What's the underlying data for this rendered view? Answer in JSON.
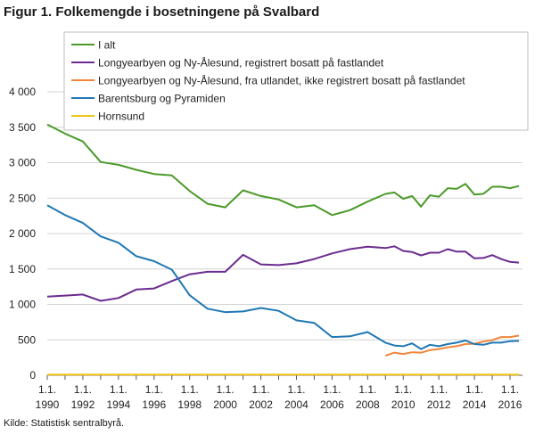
{
  "chart_data": {
    "type": "line",
    "title": "Figur 1. Folkemengde i bosetningene på Svalbard",
    "source": "Kilde: Statistisk sentralbyrå.",
    "xlabel": "",
    "ylabel": "",
    "x_tick_prefix": "1.1.",
    "x_ticks": [
      1990,
      1992,
      1994,
      1996,
      1998,
      2000,
      2002,
      2004,
      2006,
      2008,
      2010,
      2012,
      2014,
      2016
    ],
    "xlim": [
      1990,
      2016.7
    ],
    "y_ticks": [
      0,
      500,
      1000,
      1500,
      2000,
      2500,
      3000,
      3500,
      4000
    ],
    "y_tick_labels": [
      "0",
      "500",
      "1 000",
      "1 500",
      "2 000",
      "2 500",
      "3 000",
      "3 500",
      "4 000"
    ],
    "ylim": [
      0,
      4000
    ],
    "grid": "horizontal",
    "legend_placement": "top-right",
    "series": [
      {
        "name": "I alt",
        "color": "#4c9a2a",
        "points": [
          [
            1990,
            3540
          ],
          [
            1991,
            3410
          ],
          [
            1992,
            3300
          ],
          [
            1993,
            3010
          ],
          [
            1994,
            2970
          ],
          [
            1995,
            2900
          ],
          [
            1996,
            2840
          ],
          [
            1997,
            2820
          ],
          [
            1998,
            2600
          ],
          [
            1999,
            2420
          ],
          [
            2000,
            2370
          ],
          [
            2001,
            2610
          ],
          [
            2002,
            2530
          ],
          [
            2003,
            2480
          ],
          [
            2004,
            2370
          ],
          [
            2005,
            2400
          ],
          [
            2006,
            2260
          ],
          [
            2007,
            2330
          ],
          [
            2008,
            2450
          ],
          [
            2009,
            2560
          ],
          [
            2009.5,
            2580
          ],
          [
            2010,
            2490
          ],
          [
            2010.5,
            2530
          ],
          [
            2011,
            2380
          ],
          [
            2011.5,
            2540
          ],
          [
            2012,
            2520
          ],
          [
            2012.5,
            2640
          ],
          [
            2013,
            2630
          ],
          [
            2013.5,
            2700
          ],
          [
            2014,
            2550
          ],
          [
            2014.5,
            2560
          ],
          [
            2015,
            2660
          ],
          [
            2015.5,
            2660
          ],
          [
            2016,
            2640
          ],
          [
            2016.5,
            2670
          ]
        ]
      },
      {
        "name": "Longyearbyen og Ny-Ålesund, registrert bosatt på fastlandet",
        "color": "#6b2c8f",
        "points": [
          [
            1990,
            1110
          ],
          [
            1991,
            1125
          ],
          [
            1992,
            1140
          ],
          [
            1993,
            1050
          ],
          [
            1994,
            1090
          ],
          [
            1995,
            1210
          ],
          [
            1996,
            1225
          ],
          [
            1997,
            1330
          ],
          [
            1998,
            1425
          ],
          [
            1999,
            1460
          ],
          [
            2000,
            1460
          ],
          [
            2001,
            1700
          ],
          [
            2002,
            1565
          ],
          [
            2003,
            1555
          ],
          [
            2004,
            1580
          ],
          [
            2005,
            1640
          ],
          [
            2006,
            1720
          ],
          [
            2007,
            1780
          ],
          [
            2008,
            1815
          ],
          [
            2009,
            1795
          ],
          [
            2009.5,
            1820
          ],
          [
            2010,
            1755
          ],
          [
            2010.5,
            1740
          ],
          [
            2011,
            1690
          ],
          [
            2011.5,
            1730
          ],
          [
            2012,
            1730
          ],
          [
            2012.5,
            1780
          ],
          [
            2013,
            1745
          ],
          [
            2013.5,
            1745
          ],
          [
            2014,
            1650
          ],
          [
            2014.5,
            1655
          ],
          [
            2015,
            1695
          ],
          [
            2015.5,
            1640
          ],
          [
            2016,
            1600
          ],
          [
            2016.5,
            1590
          ]
        ]
      },
      {
        "name": "Longyearbyen og Ny-Ålesund, fra utlandet, ikke registrert bosatt på fastlandet",
        "color": "#f0863c",
        "points": [
          [
            2009,
            275
          ],
          [
            2009.5,
            320
          ],
          [
            2010,
            300
          ],
          [
            2010.5,
            325
          ],
          [
            2011,
            320
          ],
          [
            2011.5,
            355
          ],
          [
            2012,
            370
          ],
          [
            2012.5,
            395
          ],
          [
            2013,
            410
          ],
          [
            2013.5,
            440
          ],
          [
            2014,
            445
          ],
          [
            2014.5,
            475
          ],
          [
            2015,
            495
          ],
          [
            2015.5,
            540
          ],
          [
            2016,
            540
          ],
          [
            2016.5,
            560
          ]
        ]
      },
      {
        "name": "Barentsburg og Pyramiden",
        "color": "#1f78b4",
        "points": [
          [
            1990,
            2400
          ],
          [
            1991,
            2260
          ],
          [
            1992,
            2150
          ],
          [
            1993,
            1960
          ],
          [
            1994,
            1870
          ],
          [
            1995,
            1680
          ],
          [
            1996,
            1610
          ],
          [
            1997,
            1490
          ],
          [
            1998,
            1130
          ],
          [
            1999,
            940
          ],
          [
            2000,
            890
          ],
          [
            2001,
            900
          ],
          [
            2002,
            950
          ],
          [
            2003,
            910
          ],
          [
            2004,
            775
          ],
          [
            2005,
            740
          ],
          [
            2006,
            540
          ],
          [
            2007,
            550
          ],
          [
            2008,
            610
          ],
          [
            2009,
            460
          ],
          [
            2009.5,
            420
          ],
          [
            2010,
            410
          ],
          [
            2010.5,
            450
          ],
          [
            2011,
            370
          ],
          [
            2011.5,
            430
          ],
          [
            2012,
            410
          ],
          [
            2012.5,
            440
          ],
          [
            2013,
            460
          ],
          [
            2013.5,
            490
          ],
          [
            2014,
            440
          ],
          [
            2014.5,
            430
          ],
          [
            2015,
            460
          ],
          [
            2015.5,
            460
          ],
          [
            2016,
            480
          ],
          [
            2016.5,
            485
          ]
        ]
      },
      {
        "name": "Hornsund",
        "color": "#f0c419",
        "points": [
          [
            1990,
            10
          ],
          [
            1992,
            10
          ],
          [
            1994,
            10
          ],
          [
            1996,
            10
          ],
          [
            1998,
            10
          ],
          [
            2000,
            10
          ],
          [
            2002,
            10
          ],
          [
            2004,
            10
          ],
          [
            2006,
            10
          ],
          [
            2008,
            10
          ],
          [
            2010,
            10
          ],
          [
            2012,
            10
          ],
          [
            2014,
            10
          ],
          [
            2016,
            10
          ],
          [
            2016.5,
            10
          ]
        ]
      }
    ]
  }
}
